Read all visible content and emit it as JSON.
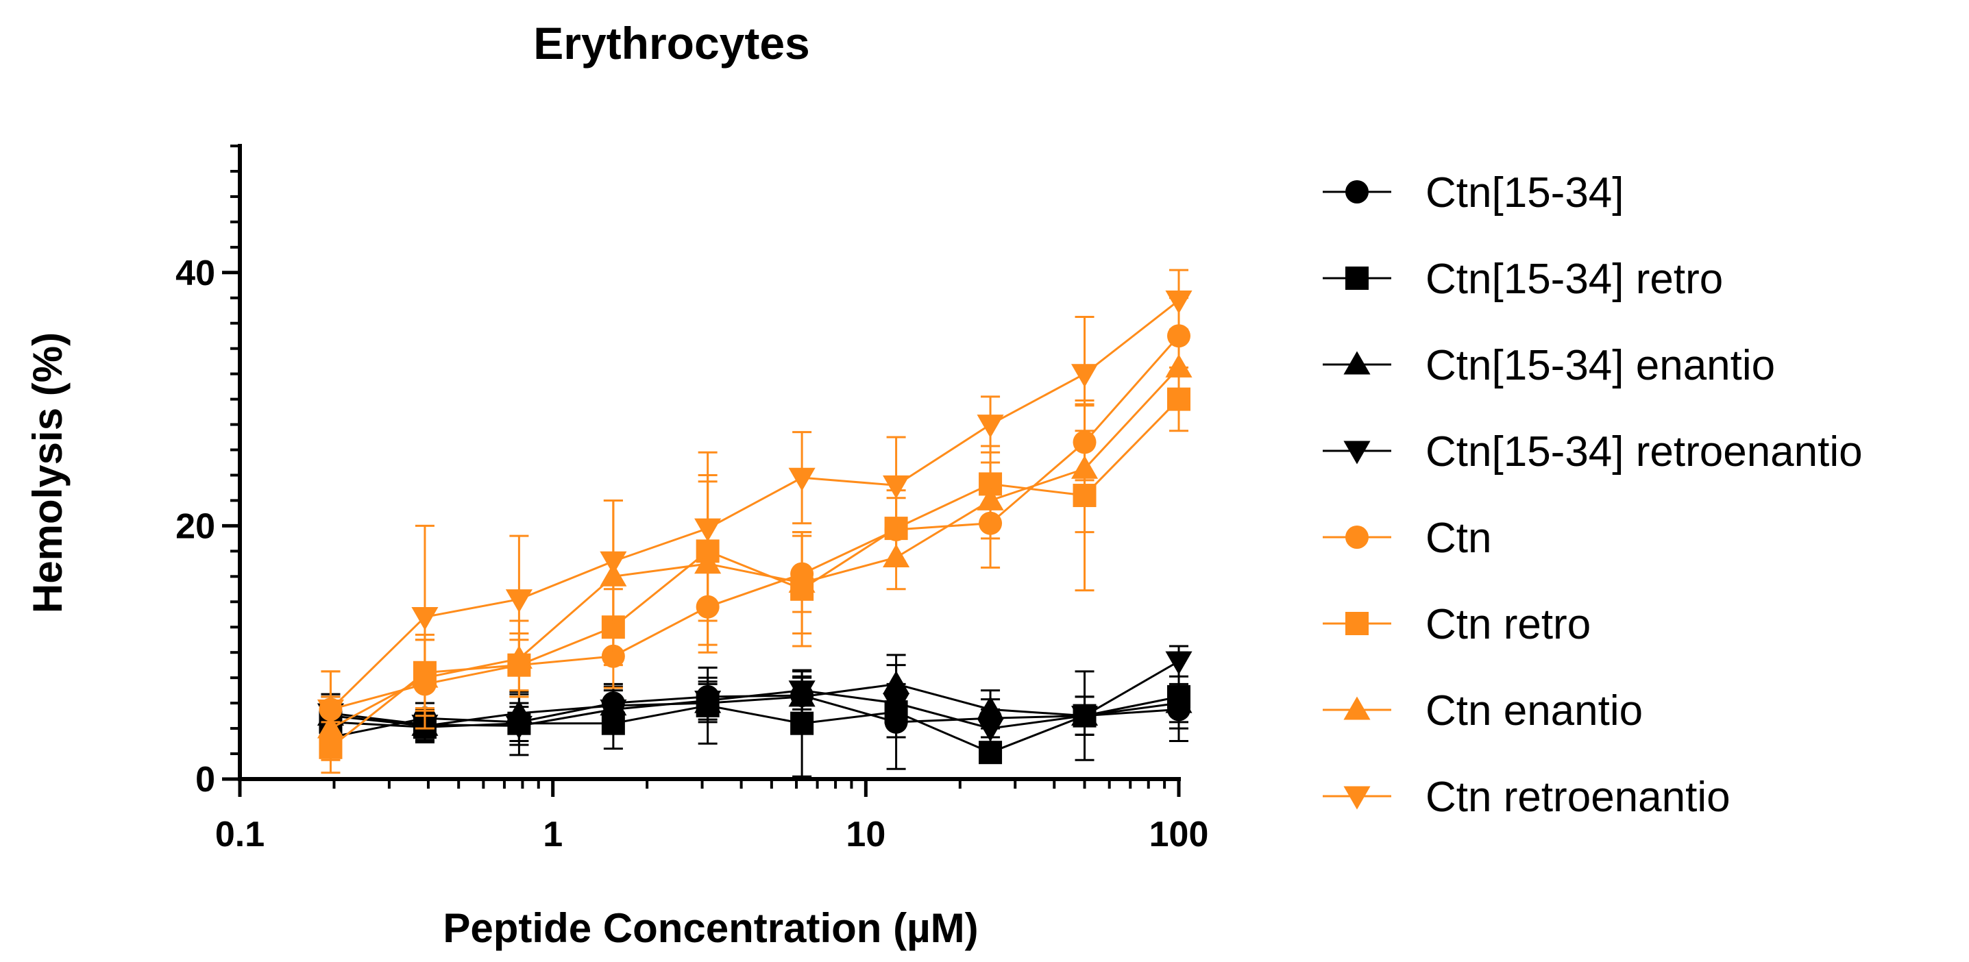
{
  "chart_data": {
    "type": "line",
    "title": "Erythrocytes",
    "xlabel": "Peptide Concentration (µM)",
    "ylabel": "Hemolysis (%)",
    "xscale": "log",
    "xlim": [
      0.1,
      100
    ],
    "ylim": [
      0,
      50
    ],
    "x_ticks": [
      0.1,
      1,
      10,
      100
    ],
    "x_tick_labels": [
      "0.1",
      "1",
      "10",
      "100"
    ],
    "y_ticks": [
      0,
      20,
      40
    ],
    "y_tick_labels": [
      "0",
      "20",
      "40"
    ],
    "x": [
      0.195,
      0.39,
      0.78,
      1.56,
      3.125,
      6.25,
      12.5,
      25,
      50,
      100
    ],
    "legend_position": "right",
    "series": [
      {
        "name": "Ctn[15-34]",
        "color": "#000000",
        "marker": "circle",
        "values": [
          3.3,
          4.8,
          4.5,
          6.0,
          6.5,
          6.6,
          4.5,
          4.8,
          5.0,
          5.5
        ],
        "errors": [
          1.5,
          1.2,
          1.5,
          1.5,
          1.5,
          1.5,
          1.2,
          1.5,
          1.5,
          1.5
        ]
      },
      {
        "name": "Ctn[15-34] retro",
        "color": "#000000",
        "marker": "square",
        "values": [
          4.5,
          4.1,
          4.4,
          4.4,
          5.8,
          4.4,
          5.3,
          2.1,
          5.0,
          6.5
        ],
        "errors": [
          2.0,
          1.2,
          2.5,
          2.0,
          3.0,
          4.2,
          4.5,
          0.6,
          3.5,
          3.5
        ]
      },
      {
        "name": "Ctn[15-34] enantio",
        "color": "#000000",
        "marker": "triangle-up",
        "values": [
          5.0,
          4.2,
          5.2,
          5.8,
          6.0,
          6.5,
          7.5,
          5.5,
          5.0,
          6.0
        ],
        "errors": [
          1.5,
          1.2,
          1.5,
          1.5,
          1.5,
          1.5,
          1.5,
          1.5,
          1.5,
          1.5
        ]
      },
      {
        "name": "Ctn[15-34] retroenantio",
        "color": "#000000",
        "marker": "triangle-down",
        "values": [
          5.2,
          4.3,
          4.2,
          5.5,
          6.2,
          7.0,
          6.0,
          4.0,
          5.0,
          9.3
        ],
        "errors": [
          1.5,
          1.2,
          1.5,
          1.5,
          1.5,
          1.5,
          1.5,
          1.5,
          1.5,
          1.2
        ]
      },
      {
        "name": "Ctn",
        "color": "#ff8c1a",
        "marker": "circle",
        "values": [
          5.5,
          7.5,
          9.0,
          9.7,
          13.6,
          16.2,
          19.7,
          20.2,
          26.6,
          35.0
        ],
        "errors": [
          3.0,
          3.5,
          2.5,
          2.5,
          3.0,
          3.0,
          2.5,
          3.5,
          3.0,
          3.0
        ]
      },
      {
        "name": "Ctn retro",
        "color": "#ff8c1a",
        "marker": "square",
        "values": [
          2.5,
          8.4,
          9.0,
          12.0,
          18.0,
          15.0,
          19.8,
          23.3,
          22.4,
          30.0
        ],
        "errors": [
          2.0,
          3.0,
          2.0,
          3.0,
          5.5,
          4.5,
          3.0,
          3.0,
          7.5,
          2.5
        ]
      },
      {
        "name": "Ctn enantio",
        "color": "#ff8c1a",
        "marker": "triangle-up",
        "values": [
          4.0,
          8.0,
          9.5,
          16.0,
          17.0,
          15.5,
          17.5,
          22.0,
          24.5,
          32.5
        ],
        "errors": [
          2.5,
          3.0,
          3.0,
          6.0,
          7.0,
          4.0,
          2.5,
          3.0,
          5.0,
          3.0
        ]
      },
      {
        "name": "Ctn retroenantio",
        "color": "#ff8c1a",
        "marker": "triangle-down",
        "values": [
          5.5,
          12.8,
          14.2,
          17.2,
          19.8,
          23.8,
          23.2,
          28.0,
          32.0,
          37.8
        ],
        "errors": [
          3.0,
          7.2,
          5.0,
          4.8,
          6.0,
          3.6,
          3.8,
          2.2,
          4.5,
          2.4
        ]
      }
    ]
  }
}
